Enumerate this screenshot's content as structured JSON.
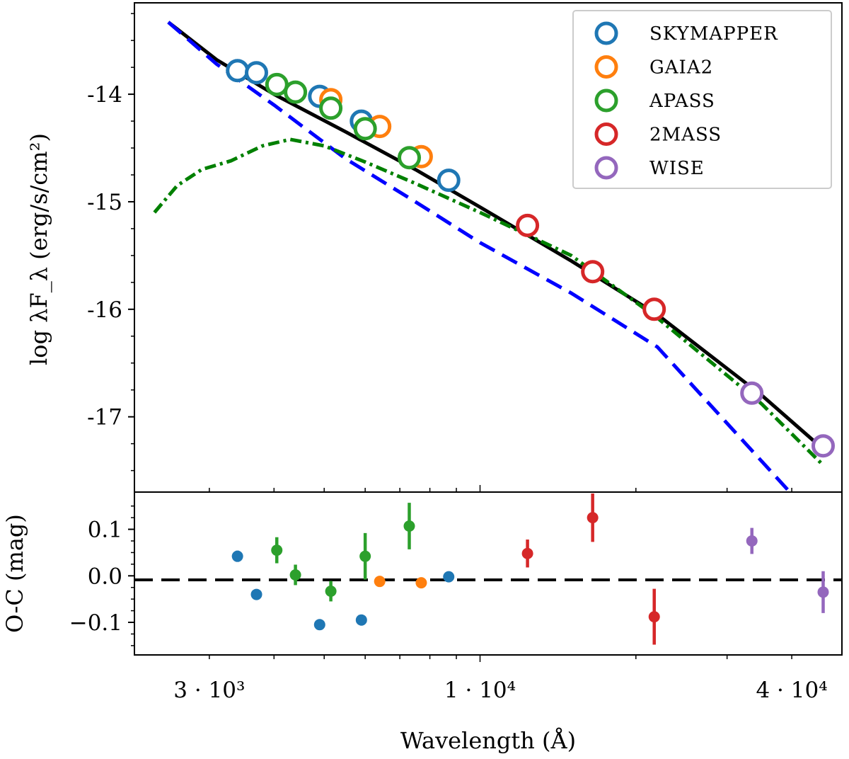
{
  "chart_data": [
    {
      "type": "line",
      "panel": "sed",
      "xscale": "log",
      "xlim": [
        2150,
        50000
      ],
      "ylim": [
        -17.7,
        -13.15
      ],
      "ylabel": "log λF_λ (erg/s/cm²)",
      "yticks": [
        -14,
        -15,
        -16,
        -17
      ],
      "ytick_labels": [
        "-14",
        "-15",
        "-16",
        "-17"
      ],
      "legend_position": "top-right",
      "colors": {
        "SKYMAPPER": "#1f77b4",
        "GAIA2": "#ff7f0e",
        "APASS": "#2ca02c",
        "2MASS": "#d62728",
        "WISE": "#9467bd",
        "total_model": "#000000",
        "hot_component": "#0000ff",
        "cool_component": "#008000"
      },
      "legend": [
        "SKYMAPPER",
        "GAIA2",
        "APASS",
        "2MASS",
        "WISE"
      ],
      "models": [
        {
          "name": "total_model",
          "style": "solid",
          "x": [
            2500,
            3100,
            4000,
            5500,
            7500,
            10000,
            15000,
            22000,
            35000,
            46000
          ],
          "y": [
            -13.33,
            -13.68,
            -14.0,
            -14.35,
            -14.7,
            -15.05,
            -15.55,
            -16.05,
            -16.8,
            -17.3
          ]
        },
        {
          "name": "hot_component",
          "style": "dashed",
          "x": [
            2500,
            3100,
            4000,
            5500,
            7500,
            10000,
            15000,
            22000,
            40000
          ],
          "y": [
            -13.33,
            -13.72,
            -14.1,
            -14.6,
            -15.0,
            -15.38,
            -15.85,
            -16.35,
            -17.72
          ]
        },
        {
          "name": "cool_component",
          "style": "dash-dot",
          "x": [
            2350,
            2600,
            2900,
            3300,
            3800,
            4300,
            5000,
            6000,
            7500,
            10000,
            15000,
            22000,
            35000,
            46000
          ],
          "y": [
            -15.1,
            -14.85,
            -14.7,
            -14.62,
            -14.48,
            -14.42,
            -14.48,
            -14.63,
            -14.83,
            -15.1,
            -15.5,
            -16.08,
            -16.88,
            -17.45
          ]
        }
      ],
      "series": [
        {
          "name": "SKYMAPPER",
          "x": [
            3400,
            3700,
            4900,
            5900,
            8700
          ],
          "y": [
            -13.78,
            -13.8,
            -14.02,
            -14.25,
            -14.8
          ]
        },
        {
          "name": "GAIA2",
          "x": [
            5150,
            6400,
            7700
          ],
          "y": [
            -14.05,
            -14.3,
            -14.58
          ]
        },
        {
          "name": "APASS",
          "x": [
            4050,
            4400,
            5150,
            6000,
            7300
          ],
          "y": [
            -13.91,
            -13.98,
            -14.13,
            -14.32,
            -14.59
          ]
        },
        {
          "name": "2MASS",
          "x": [
            12350,
            16500,
            21700
          ],
          "y": [
            -15.22,
            -15.65,
            -16.0
          ]
        },
        {
          "name": "WISE",
          "x": [
            33500,
            46000
          ],
          "y": [
            -16.78,
            -17.27
          ]
        }
      ]
    },
    {
      "type": "scatter",
      "panel": "residuals",
      "xscale": "log",
      "xlim": [
        2150,
        50000
      ],
      "ylim": [
        -0.17,
        0.18
      ],
      "xlabel": "Wavelength (Å)",
      "ylabel": "O-C (mag)",
      "yticks": [
        0.1,
        0.0,
        -0.1
      ],
      "ytick_labels": [
        "0.1",
        "0.0",
        "−0.1"
      ],
      "xticks": [
        3000,
        10000,
        40000
      ],
      "xtick_labels": [
        "3 · 10³",
        "1 · 10⁴",
        "4 · 10⁴"
      ],
      "reference_line": 0.0,
      "series": [
        {
          "name": "SKYMAPPER",
          "x": [
            3400,
            3700,
            4900,
            5900,
            8700
          ],
          "y": [
            0.042,
            -0.04,
            -0.105,
            -0.095,
            -0.002
          ],
          "err": [
            0.012,
            0.008,
            0.008,
            0.008,
            0.008
          ]
        },
        {
          "name": "GAIA2",
          "x": [
            6400,
            7700
          ],
          "y": [
            -0.012,
            -0.015
          ],
          "err": [
            0.006,
            0.006
          ]
        },
        {
          "name": "APASS",
          "x": [
            4050,
            4400,
            5150,
            6000,
            7300
          ],
          "y": [
            0.055,
            0.002,
            -0.033,
            0.042,
            0.107
          ],
          "err": [
            0.028,
            0.022,
            0.022,
            0.05,
            0.05
          ]
        },
        {
          "name": "2MASS",
          "x": [
            12350,
            16500,
            21700
          ],
          "y": [
            0.048,
            0.125,
            -0.088
          ],
          "err": [
            0.03,
            0.052,
            0.06
          ]
        },
        {
          "name": "WISE",
          "x": [
            33500,
            46000
          ],
          "y": [
            0.075,
            -0.035
          ],
          "err": [
            0.028,
            0.045
          ]
        }
      ]
    }
  ]
}
